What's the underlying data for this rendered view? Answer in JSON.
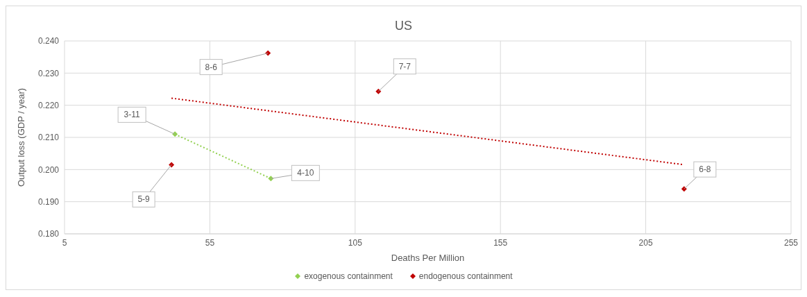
{
  "chart_data": {
    "type": "scatter",
    "title": "US",
    "xlabel": "Deaths Per Million",
    "ylabel": "Output loss (GDP / year)",
    "xlim": [
      5,
      255
    ],
    "xticks": [
      {
        "value": 5,
        "label": "5"
      },
      {
        "value": 55,
        "label": "55"
      },
      {
        "value": 105,
        "label": "105"
      },
      {
        "value": 155,
        "label": "155"
      },
      {
        "value": 205,
        "label": "205"
      },
      {
        "value": 255,
        "label": "255"
      }
    ],
    "ylim": [
      0.18,
      0.24
    ],
    "yticks": [
      {
        "value": 0.18,
        "label": "0.180"
      },
      {
        "value": 0.19,
        "label": "0.190"
      },
      {
        "value": 0.2,
        "label": "0.200"
      },
      {
        "value": 0.21,
        "label": "0.210"
      },
      {
        "value": 0.22,
        "label": "0.220"
      },
      {
        "value": 0.23,
        "label": "0.230"
      },
      {
        "value": 0.24,
        "label": "0.240"
      }
    ],
    "grid": true,
    "legend": "bottom",
    "marker": "diamond",
    "series": [
      {
        "name": "exogenous containment",
        "color": "#92d050",
        "x": [
          43,
          76
        ],
        "values": [
          0.211,
          0.1972
        ]
      },
      {
        "name": "endogenous containment",
        "color": "#c00000",
        "x": [
          41.8,
          75,
          113,
          218.2
        ],
        "values": [
          0.2015,
          0.2362,
          0.2243,
          0.194
        ]
      },
      {
        "type": "line",
        "color": "#92d050",
        "line_style": "dotted",
        "marker": "none",
        "x": [
          43,
          76
        ],
        "values": [
          0.211,
          0.1972
        ]
      },
      {
        "type": "line",
        "color": "#c00000",
        "line_style": "dotted",
        "marker": "none",
        "x": [
          41.8,
          218.2
        ],
        "values": [
          0.2222,
          0.2015
        ]
      }
    ],
    "annotations": [
      {
        "text": "3-11",
        "x": 43,
        "y": 0.211
      },
      {
        "text": "4-10",
        "x": 76,
        "y": 0.1972
      },
      {
        "text": "5-9",
        "x": 41.8,
        "y": 0.2015
      },
      {
        "text": "8-6",
        "x": 75,
        "y": 0.2362
      },
      {
        "text": "7-7",
        "x": 113,
        "y": 0.2243
      },
      {
        "text": "6-8",
        "x": 218.2,
        "y": 0.194
      }
    ]
  }
}
